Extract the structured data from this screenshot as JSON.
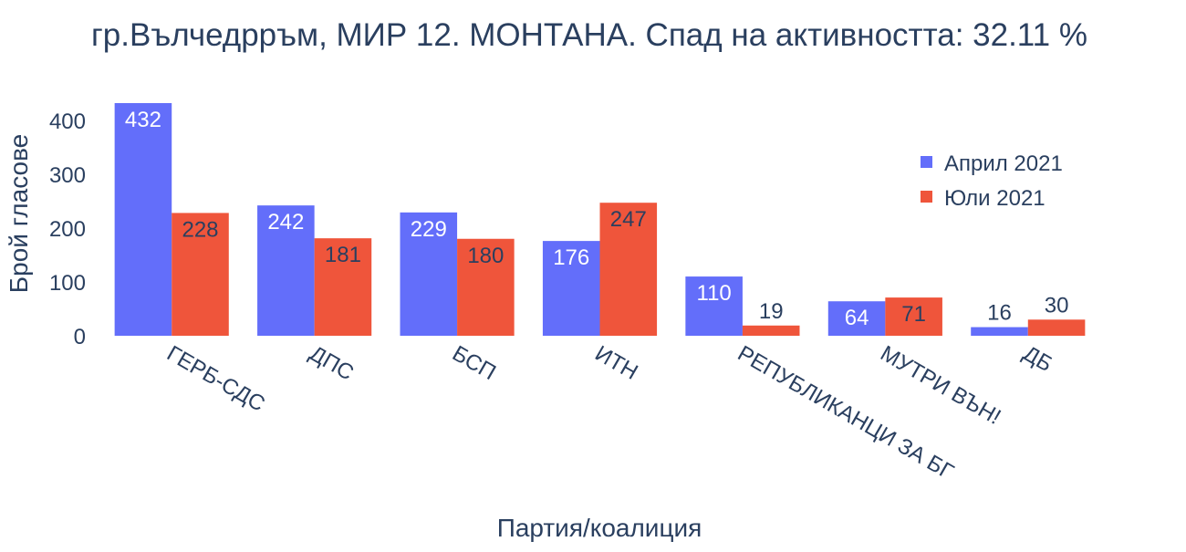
{
  "chart_data": {
    "type": "bar",
    "title": "гр.Вълчедрръм, МИР 12. МОНТАНА. Спад на активността: 32.11 %",
    "xlabel": "Партия/коалиция",
    "ylabel": "Брой гласове",
    "ylim": [
      0,
      432
    ],
    "yticks": [
      0,
      100,
      200,
      300,
      400
    ],
    "categories": [
      "ГЕРБ-СДС",
      "ДПС",
      "БСП",
      "ИТН",
      "РЕПУБЛИКАНЦИ ЗА БГ",
      "МУТРИ ВЪН!",
      "ДБ"
    ],
    "series": [
      {
        "name": "Април 2021",
        "color": "#636efa",
        "values": [
          432,
          242,
          229,
          176,
          110,
          64,
          16
        ]
      },
      {
        "name": "Юли 2021",
        "color": "#ef553b",
        "values": [
          228,
          181,
          180,
          247,
          19,
          71,
          30
        ]
      }
    ],
    "grid": false,
    "legend_position": "top-right"
  }
}
